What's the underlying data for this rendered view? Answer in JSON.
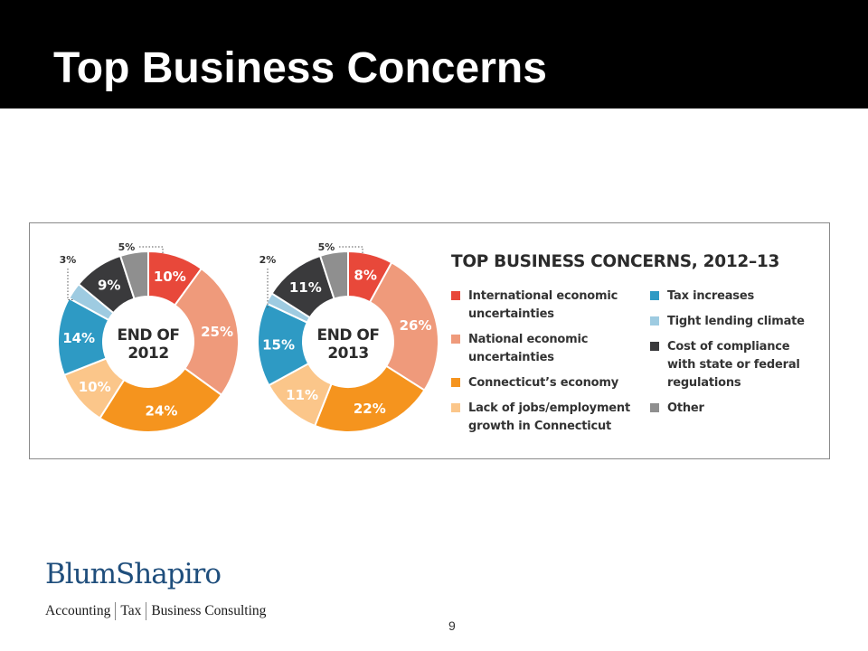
{
  "slide": {
    "title": "Top Business Concerns",
    "page_number": "9"
  },
  "logo": {
    "name": "BlumShapiro",
    "tagline": [
      "Accounting",
      "Tax",
      "Business Consulting"
    ]
  },
  "chart_data": {
    "type": "pie",
    "title": "TOP BUSINESS CONCERNS, 2012–13",
    "legend_position": "right",
    "categories": [
      "International economic\nuncertainties",
      "National economic\nuncertainties",
      "Connecticut’s economy",
      "Lack of jobs/employment\ngrowth in Connecticut",
      "Tax increases",
      "Tight lending climate",
      "Cost of compliance\nwith state or federal\nregulations",
      "Other"
    ],
    "colors": [
      "#e8483a",
      "#ef9a7b",
      "#f5941e",
      "#fbc68a",
      "#2e9ac4",
      "#9ecbe1",
      "#3a3a3c",
      "#8f8f8f"
    ],
    "series": [
      {
        "name": "END OF\n2012",
        "values": [
          10,
          25,
          24,
          10,
          14,
          3,
          9,
          5
        ]
      },
      {
        "name": "END OF\n2013",
        "values": [
          8,
          26,
          22,
          11,
          15,
          2,
          11,
          5
        ]
      }
    ]
  }
}
